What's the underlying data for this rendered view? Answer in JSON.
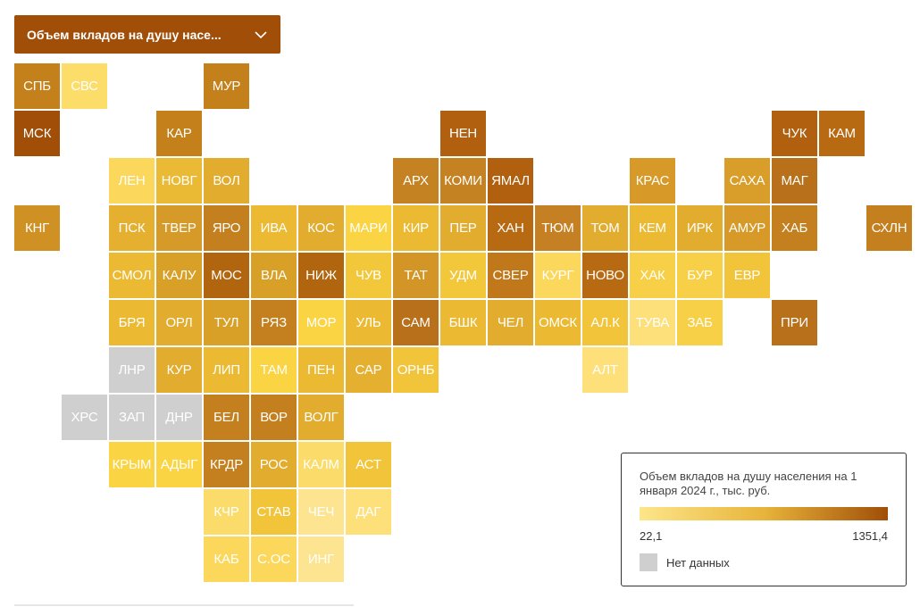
{
  "selector": {
    "label": "Объем вкладов на душу насе..."
  },
  "legend": {
    "title": "Объем вкладов на душу населения на 1 января 2024 г., тыс. руб.",
    "min_label": "22,1",
    "max_label": "1351,4",
    "min_color": "#fde68a",
    "mid_color": "#e8b43a",
    "max_color": "#a04e08",
    "nodata_label": "Нет данных",
    "nodata_color": "#cfcfcf"
  },
  "tiles": [
    {
      "label": "СПБ",
      "row": 0,
      "col": 0,
      "color": "#c4801a"
    },
    {
      "label": "СВС",
      "row": 0,
      "col": 1,
      "color": "#fddd6a"
    },
    {
      "label": "МУР",
      "row": 0,
      "col": 4,
      "color": "#c4801a"
    },
    {
      "label": "МСК",
      "row": 1,
      "col": 0,
      "color": "#a04e08"
    },
    {
      "label": "КАР",
      "row": 1,
      "col": 3,
      "color": "#c4801a"
    },
    {
      "label": "НЕН",
      "row": 1,
      "col": 9,
      "color": "#b0600e"
    },
    {
      "label": "ЧУК",
      "row": 1,
      "col": 16,
      "color": "#b0600e"
    },
    {
      "label": "КАМ",
      "row": 1,
      "col": 17,
      "color": "#b86a12"
    },
    {
      "label": "ЛЕН",
      "row": 2,
      "col": 2,
      "color": "#fbd85c"
    },
    {
      "label": "НОВГ",
      "row": 2,
      "col": 3,
      "color": "#ebba34"
    },
    {
      "label": "ВОЛ",
      "row": 2,
      "col": 4,
      "color": "#e2ac2e"
    },
    {
      "label": "АРХ",
      "row": 2,
      "col": 8,
      "color": "#c48222"
    },
    {
      "label": "КОМИ",
      "row": 2,
      "col": 9,
      "color": "#c48222"
    },
    {
      "label": "ЯМАЛ",
      "row": 2,
      "col": 10,
      "color": "#b0600e"
    },
    {
      "label": "КРАС",
      "row": 2,
      "col": 13,
      "color": "#d79a28"
    },
    {
      "label": "САХА",
      "row": 2,
      "col": 15,
      "color": "#d99e2a"
    },
    {
      "label": "МАГ",
      "row": 2,
      "col": 16,
      "color": "#b8701a"
    },
    {
      "label": "КНГ",
      "row": 3,
      "col": 0,
      "color": "#cf9024"
    },
    {
      "label": "ПСК",
      "row": 3,
      "col": 2,
      "color": "#e5b030"
    },
    {
      "label": "ТВЕР",
      "row": 3,
      "col": 3,
      "color": "#d69a28"
    },
    {
      "label": "ЯРО",
      "row": 3,
      "col": 4,
      "color": "#c4801e"
    },
    {
      "label": "ИВА",
      "row": 3,
      "col": 5,
      "color": "#ebba32"
    },
    {
      "label": "КОС",
      "row": 3,
      "col": 6,
      "color": "#e2ac2e"
    },
    {
      "label": "МАРИ",
      "row": 3,
      "col": 7,
      "color": "#fbd443"
    },
    {
      "label": "КИР",
      "row": 3,
      "col": 8,
      "color": "#ebba32"
    },
    {
      "label": "ПЕР",
      "row": 3,
      "col": 9,
      "color": "#e2ac2e"
    },
    {
      "label": "ХАН",
      "row": 3,
      "col": 10,
      "color": "#b86a12"
    },
    {
      "label": "ТЮМ",
      "row": 3,
      "col": 11,
      "color": "#c48022"
    },
    {
      "label": "ТОМ",
      "row": 3,
      "col": 12,
      "color": "#e2ac2e"
    },
    {
      "label": "КЕМ",
      "row": 3,
      "col": 13,
      "color": "#ebba32"
    },
    {
      "label": "ИРК",
      "row": 3,
      "col": 14,
      "color": "#e2ac2e"
    },
    {
      "label": "АМУР",
      "row": 3,
      "col": 15,
      "color": "#d79a28"
    },
    {
      "label": "ХАБ",
      "row": 3,
      "col": 16,
      "color": "#c4801e"
    },
    {
      "label": "СХЛН",
      "row": 3,
      "col": 18,
      "color": "#c4801e"
    },
    {
      "label": "СМОЛ",
      "row": 4,
      "col": 2,
      "color": "#ebba32"
    },
    {
      "label": "КАЛУ",
      "row": 4,
      "col": 3,
      "color": "#d9a028"
    },
    {
      "label": "МОС",
      "row": 4,
      "col": 4,
      "color": "#b0650e"
    },
    {
      "label": "ВЛА",
      "row": 4,
      "col": 5,
      "color": "#d9a028"
    },
    {
      "label": "НИЖ",
      "row": 4,
      "col": 6,
      "color": "#b0650e"
    },
    {
      "label": "ЧУВ",
      "row": 4,
      "col": 7,
      "color": "#f2c83a"
    },
    {
      "label": "ТАТ",
      "row": 4,
      "col": 8,
      "color": "#d39626"
    },
    {
      "label": "УДМ",
      "row": 4,
      "col": 9,
      "color": "#f2c83a"
    },
    {
      "label": "СВЕР",
      "row": 4,
      "col": 10,
      "color": "#c0781a"
    },
    {
      "label": "КУРГ",
      "row": 4,
      "col": 11,
      "color": "#fbd85c"
    },
    {
      "label": "НОВО",
      "row": 4,
      "col": 12,
      "color": "#b86a12"
    },
    {
      "label": "ХАК",
      "row": 4,
      "col": 13,
      "color": "#f8d048"
    },
    {
      "label": "БУР",
      "row": 4,
      "col": 14,
      "color": "#f8d048"
    },
    {
      "label": "ЕВР",
      "row": 4,
      "col": 15,
      "color": "#f2c43a"
    },
    {
      "label": "БРЯ",
      "row": 5,
      "col": 2,
      "color": "#ebba32"
    },
    {
      "label": "ОРЛ",
      "row": 5,
      "col": 3,
      "color": "#e2ac2e"
    },
    {
      "label": "ТУЛ",
      "row": 5,
      "col": 4,
      "color": "#d9a028"
    },
    {
      "label": "РЯЗ",
      "row": 5,
      "col": 5,
      "color": "#c4801e"
    },
    {
      "label": "МОР",
      "row": 5,
      "col": 6,
      "color": "#fbd443"
    },
    {
      "label": "УЛЬ",
      "row": 5,
      "col": 7,
      "color": "#ebba32"
    },
    {
      "label": "САМ",
      "row": 5,
      "col": 8,
      "color": "#b8701a"
    },
    {
      "label": "БШК",
      "row": 5,
      "col": 9,
      "color": "#ebba32"
    },
    {
      "label": "ЧЕЛ",
      "row": 5,
      "col": 10,
      "color": "#e2ac2e"
    },
    {
      "label": "ОМСК",
      "row": 5,
      "col": 11,
      "color": "#ebba32"
    },
    {
      "label": "АЛ.К",
      "row": 5,
      "col": 12,
      "color": "#f2c43a"
    },
    {
      "label": "ТУВА",
      "row": 5,
      "col": 13,
      "color": "#fde07a"
    },
    {
      "label": "ЗАБ",
      "row": 5,
      "col": 14,
      "color": "#f8d048"
    },
    {
      "label": "ПРИ",
      "row": 5,
      "col": 16,
      "color": "#b8701a"
    },
    {
      "label": "ЛНР",
      "row": 6,
      "col": 2,
      "color": "#cfcfcf"
    },
    {
      "label": "КУР",
      "row": 6,
      "col": 3,
      "color": "#e2ac2e"
    },
    {
      "label": "ЛИП",
      "row": 6,
      "col": 4,
      "color": "#ebba32"
    },
    {
      "label": "ТАМ",
      "row": 6,
      "col": 5,
      "color": "#fbd443"
    },
    {
      "label": "ПЕН",
      "row": 6,
      "col": 6,
      "color": "#ebba32"
    },
    {
      "label": "САР",
      "row": 6,
      "col": 7,
      "color": "#e5b030"
    },
    {
      "label": "ОРНБ",
      "row": 6,
      "col": 8,
      "color": "#f2c43a"
    },
    {
      "label": "АЛТ",
      "row": 6,
      "col": 12,
      "color": "#fde07a"
    },
    {
      "label": "ХРС",
      "row": 7,
      "col": 1,
      "color": "#cfcfcf"
    },
    {
      "label": "ЗАП",
      "row": 7,
      "col": 2,
      "color": "#cfcfcf"
    },
    {
      "label": "ДНР",
      "row": 7,
      "col": 3,
      "color": "#cfcfcf"
    },
    {
      "label": "БЕЛ",
      "row": 7,
      "col": 4,
      "color": "#c4801e"
    },
    {
      "label": "ВОР",
      "row": 7,
      "col": 5,
      "color": "#c4801e"
    },
    {
      "label": "ВОЛГ",
      "row": 7,
      "col": 6,
      "color": "#e2ac2e"
    },
    {
      "label": "КРЫМ",
      "row": 8,
      "col": 2,
      "color": "#fbd443"
    },
    {
      "label": "АДЫГ",
      "row": 8,
      "col": 3,
      "color": "#fbd443"
    },
    {
      "label": "КРДР",
      "row": 8,
      "col": 4,
      "color": "#c4801e"
    },
    {
      "label": "РОС",
      "row": 8,
      "col": 5,
      "color": "#e2ac2e"
    },
    {
      "label": "КАЛМ",
      "row": 8,
      "col": 6,
      "color": "#fbdc6a"
    },
    {
      "label": "АСТ",
      "row": 8,
      "col": 7,
      "color": "#f2c43a"
    },
    {
      "label": "КЧР",
      "row": 9,
      "col": 4,
      "color": "#fbdc6a"
    },
    {
      "label": "СТАВ",
      "row": 9,
      "col": 5,
      "color": "#f2c43a"
    },
    {
      "label": "ЧЕЧ",
      "row": 9,
      "col": 6,
      "color": "#fde490"
    },
    {
      "label": "ДАГ",
      "row": 9,
      "col": 7,
      "color": "#fde07a"
    },
    {
      "label": "КАБ",
      "row": 10,
      "col": 4,
      "color": "#fbd85c"
    },
    {
      "label": "С.ОС",
      "row": 10,
      "col": 5,
      "color": "#fbd85c"
    },
    {
      "label": "ИНГ",
      "row": 10,
      "col": 6,
      "color": "#fde490"
    }
  ]
}
